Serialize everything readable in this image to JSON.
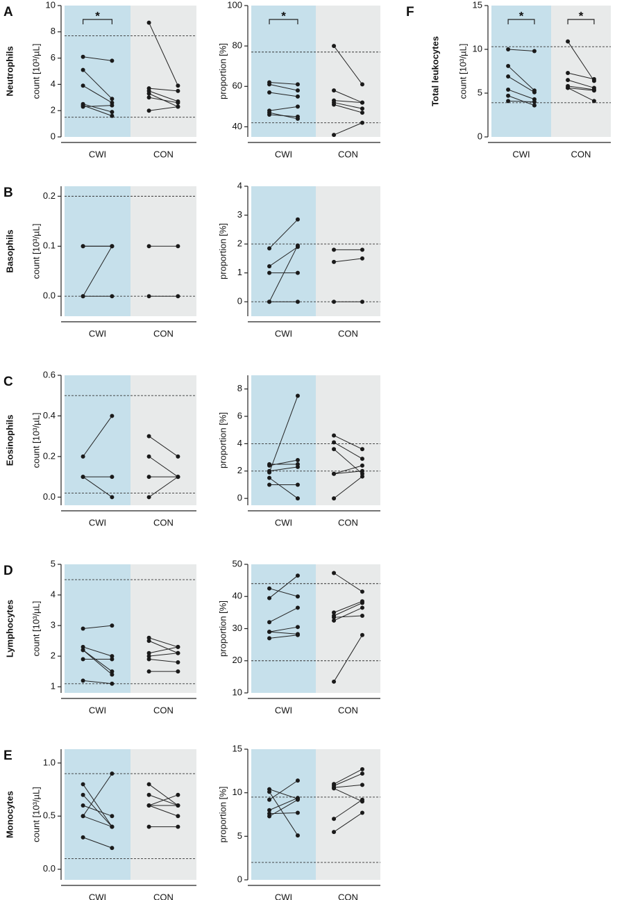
{
  "chart_data": [
    {
      "type": "paired",
      "panel_label": "A",
      "row_title": "Neutrophils",
      "ylabel": "count [10³/µL]",
      "ylim": [
        0,
        10
      ],
      "yticks": [
        0,
        2,
        4,
        6,
        8,
        10
      ],
      "reference_lines": [
        1.5,
        7.7
      ],
      "groups": [
        {
          "name": "CWI",
          "color": "#c6e0eb",
          "significance": "*",
          "pairs": [
            [
              6.1,
              5.8
            ],
            [
              5.1,
              2.9
            ],
            [
              3.9,
              2.6
            ],
            [
              2.5,
              1.9
            ],
            [
              2.3,
              2.4
            ],
            [
              2.4,
              1.6
            ]
          ]
        },
        {
          "name": "CON",
          "color": "#e8eaea",
          "pairs": [
            [
              8.7,
              3.9
            ],
            [
              3.7,
              3.5
            ],
            [
              3.5,
              2.7
            ],
            [
              3.3,
              2.3
            ],
            [
              3.0,
              2.6
            ],
            [
              2.0,
              2.3
            ]
          ]
        }
      ]
    },
    {
      "type": "paired",
      "ylabel": "proportion [%]",
      "ylim": [
        35,
        100
      ],
      "yticks": [
        40,
        60,
        80,
        100
      ],
      "reference_lines": [
        42,
        77
      ],
      "groups": [
        {
          "name": "CWI",
          "color": "#c6e0eb",
          "significance": "*",
          "pairs": [
            [
              62,
              61
            ],
            [
              61,
              58
            ],
            [
              57,
              55
            ],
            [
              48,
              50
            ],
            [
              46,
              45
            ],
            [
              47,
              44
            ]
          ]
        },
        {
          "name": "CON",
          "color": "#e8eaea",
          "pairs": [
            [
              80,
              61
            ],
            [
              58,
              52
            ],
            [
              53,
              52
            ],
            [
              52,
              49
            ],
            [
              51,
              47
            ],
            [
              36,
              42
            ]
          ]
        }
      ]
    },
    {
      "type": "paired",
      "panel_label": "F",
      "row_title": "Total leukocytes",
      "ylabel": "count [10³/µL]",
      "ylim": [
        0,
        15
      ],
      "yticks": [
        0,
        5,
        10,
        15
      ],
      "reference_lines": [
        3.9,
        10.3
      ],
      "groups": [
        {
          "name": "CWI",
          "color": "#c6e0eb",
          "significance": "*",
          "pairs": [
            [
              10.0,
              9.8
            ],
            [
              8.1,
              5.3
            ],
            [
              6.9,
              5.1
            ],
            [
              5.4,
              4.3
            ],
            [
              4.7,
              3.6
            ],
            [
              4.1,
              4.0
            ]
          ]
        },
        {
          "name": "CON",
          "color": "#e8eaea",
          "significance": "*",
          "pairs": [
            [
              10.9,
              6.4
            ],
            [
              7.3,
              6.6
            ],
            [
              6.5,
              5.6
            ],
            [
              5.8,
              5.4
            ],
            [
              5.6,
              5.3
            ],
            [
              5.6,
              4.1
            ]
          ]
        }
      ]
    },
    {
      "type": "paired",
      "panel_label": "B",
      "row_title": "Basophils",
      "ylabel": "count [10³/µL]",
      "ylim": [
        -0.04,
        0.22
      ],
      "yticks": [
        {
          "value": 0,
          "label": "0.0"
        },
        0.1,
        0.2
      ],
      "reference_lines": [
        0,
        0.2
      ],
      "groups": [
        {
          "name": "CWI",
          "color": "#c6e0eb",
          "pairs": [
            [
              0.1,
              0.1
            ],
            [
              0.1,
              0.1
            ],
            [
              0,
              0.1
            ],
            [
              0,
              0
            ]
          ]
        },
        {
          "name": "CON",
          "color": "#e8eaea",
          "pairs": [
            [
              0.1,
              0.1
            ],
            [
              0,
              0
            ]
          ]
        }
      ]
    },
    {
      "type": "paired",
      "ylabel": "proportion [%]",
      "ylim": [
        -0.5,
        4
      ],
      "yticks": [
        0,
        1,
        2,
        3,
        4
      ],
      "reference_lines": [
        0,
        2
      ],
      "groups": [
        {
          "name": "CWI",
          "color": "#c6e0eb",
          "pairs": [
            [
              1.85,
              2.85
            ],
            [
              1.23,
              1.9
            ],
            [
              1.0,
              1.0
            ],
            [
              0,
              1.95
            ],
            [
              0,
              0
            ]
          ]
        },
        {
          "name": "CON",
          "color": "#e8eaea",
          "pairs": [
            [
              1.8,
              1.8
            ],
            [
              1.38,
              1.5
            ],
            [
              0,
              0
            ]
          ]
        }
      ]
    },
    {
      "type": "paired",
      "panel_label": "C",
      "row_title": "Eosinophils",
      "ylabel": "count [10³/µL]",
      "ylim": [
        -0.04,
        0.6
      ],
      "yticks": [
        {
          "value": 0,
          "label": "0.0"
        },
        0.2,
        0.4,
        0.6
      ],
      "reference_lines": [
        0.02,
        0.5
      ],
      "groups": [
        {
          "name": "CWI",
          "color": "#c6e0eb",
          "pairs": [
            [
              0.2,
              0.4
            ],
            [
              0.1,
              0.1
            ],
            [
              0.1,
              0.0
            ]
          ]
        },
        {
          "name": "CON",
          "color": "#e8eaea",
          "pairs": [
            [
              0.3,
              0.2
            ],
            [
              0.2,
              0.1
            ],
            [
              0.1,
              0.1
            ],
            [
              0.0,
              0.1
            ]
          ]
        }
      ]
    },
    {
      "type": "paired",
      "ylabel": "proportion [%]",
      "ylim": [
        -0.5,
        9
      ],
      "yticks": [
        0,
        2,
        4,
        6,
        8
      ],
      "reference_lines": [
        2,
        4
      ],
      "groups": [
        {
          "name": "CWI",
          "color": "#c6e0eb",
          "pairs": [
            [
              1.9,
              7.5
            ],
            [
              2.4,
              2.8
            ],
            [
              2.5,
              2.5
            ],
            [
              2.0,
              2.3
            ],
            [
              1.5,
              0
            ],
            [
              1.0,
              1.0
            ]
          ]
        },
        {
          "name": "CON",
          "color": "#e8eaea",
          "pairs": [
            [
              4.6,
              3.6
            ],
            [
              4.1,
              2.9
            ],
            [
              3.6,
              1.8
            ],
            [
              1.8,
              2.4
            ],
            [
              1.8,
              2.0
            ],
            [
              0,
              1.6
            ]
          ]
        }
      ]
    },
    {
      "type": "paired",
      "panel_label": "D",
      "row_title": "Lymphocytes",
      "ylabel": "count [10³/µL]",
      "ylim": [
        0.8,
        5
      ],
      "yticks": [
        1,
        2,
        3,
        4,
        5
      ],
      "reference_lines": [
        1.1,
        4.5
      ],
      "groups": [
        {
          "name": "CWI",
          "color": "#c6e0eb",
          "pairs": [
            [
              2.9,
              3.0
            ],
            [
              2.3,
              2.0
            ],
            [
              2.2,
              1.4
            ],
            [
              2.2,
              1.5
            ],
            [
              1.9,
              1.9
            ],
            [
              1.2,
              1.1
            ]
          ]
        },
        {
          "name": "CON",
          "color": "#e8eaea",
          "pairs": [
            [
              2.6,
              2.3
            ],
            [
              2.5,
              2.1
            ],
            [
              2.1,
              2.3
            ],
            [
              2.0,
              2.1
            ],
            [
              1.9,
              1.8
            ],
            [
              1.5,
              1.5
            ]
          ]
        }
      ]
    },
    {
      "type": "paired",
      "ylabel": "proportion [%]",
      "ylim": [
        10,
        50
      ],
      "yticks": [
        10,
        20,
        30,
        40,
        50
      ],
      "reference_lines": [
        20,
        44
      ],
      "groups": [
        {
          "name": "CWI",
          "color": "#c6e0eb",
          "pairs": [
            [
              42.5,
              40
            ],
            [
              39.5,
              46.5
            ],
            [
              32,
              36.5
            ],
            [
              29,
              30.5
            ],
            [
              29,
              28.3
            ],
            [
              27,
              28
            ]
          ]
        },
        {
          "name": "CON",
          "color": "#e8eaea",
          "pairs": [
            [
              47.3,
              41.5
            ],
            [
              35,
              38.5
            ],
            [
              34,
              38
            ],
            [
              33.5,
              34
            ],
            [
              32.5,
              36.5
            ],
            [
              13.5,
              28
            ]
          ]
        }
      ]
    },
    {
      "type": "paired",
      "panel_label": "E",
      "row_title": "Monocytes",
      "ylabel": "count [10³/µL]",
      "ylim": [
        -0.1,
        1.13
      ],
      "yticks": [
        {
          "value": 0,
          "label": "0.0"
        },
        0.5,
        {
          "value": 1,
          "label": "1.0"
        }
      ],
      "reference_lines": [
        0.1,
        0.9
      ],
      "groups": [
        {
          "name": "CWI",
          "color": "#c6e0eb",
          "pairs": [
            [
              0.8,
              0.4
            ],
            [
              0.7,
              0.4
            ],
            [
              0.6,
              0.5
            ],
            [
              0.5,
              0.9
            ],
            [
              0.5,
              0.4
            ],
            [
              0.3,
              0.2
            ]
          ]
        },
        {
          "name": "CON",
          "color": "#e8eaea",
          "pairs": [
            [
              0.8,
              0.6
            ],
            [
              0.7,
              0.6
            ],
            [
              0.6,
              0.7
            ],
            [
              0.6,
              0.5
            ],
            [
              0.6,
              0.6
            ],
            [
              0.4,
              0.4
            ]
          ]
        }
      ]
    },
    {
      "type": "paired",
      "ylabel": "proportion [%]",
      "ylim": [
        0,
        15
      ],
      "yticks": [
        0,
        5,
        10,
        15
      ],
      "reference_lines": [
        2,
        9.5
      ],
      "groups": [
        {
          "name": "CWI",
          "color": "#c6e0eb",
          "pairs": [
            [
              10.4,
              9.3
            ],
            [
              10.1,
              5.1
            ],
            [
              9.2,
              11.4
            ],
            [
              8.0,
              9.4
            ],
            [
              7.6,
              7.7
            ],
            [
              7.3,
              9.2
            ]
          ]
        },
        {
          "name": "CON",
          "color": "#e8eaea",
          "pairs": [
            [
              11.0,
              12.7
            ],
            [
              10.8,
              12.2
            ],
            [
              10.6,
              10.9
            ],
            [
              10.5,
              9.0
            ],
            [
              7.0,
              9.2
            ],
            [
              5.5,
              7.7
            ]
          ]
        }
      ]
    }
  ]
}
